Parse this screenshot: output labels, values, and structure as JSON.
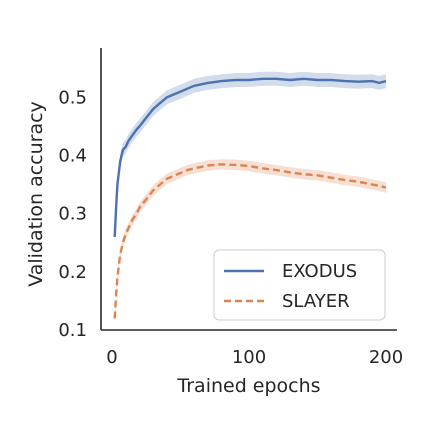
{
  "chart_data": {
    "type": "line",
    "title": "",
    "xlabel": "Trained epochs",
    "ylabel": "Validation accuracy",
    "xlim": [
      -8,
      208
    ],
    "ylim": [
      0.1,
      0.585
    ],
    "xticks": [
      0,
      100,
      200
    ],
    "xtick_labels": [
      "0",
      "100",
      "200"
    ],
    "yticks": [
      0.1,
      0.2,
      0.3,
      0.4,
      0.5
    ],
    "ytick_labels": [
      "0.1",
      "0.2",
      "0.3",
      "0.4",
      "0.5"
    ],
    "grid": false,
    "legend_position": "lower-right",
    "series": [
      {
        "name": "EXODUS",
        "color": "#4c72b0",
        "line_style": "solid",
        "shaded_band": true,
        "x": [
          2,
          3,
          4,
          5,
          6,
          8,
          10,
          12,
          15,
          18,
          20,
          25,
          30,
          35,
          40,
          45,
          50,
          55,
          60,
          70,
          80,
          90,
          100,
          110,
          120,
          130,
          140,
          150,
          160,
          170,
          180,
          190,
          195,
          200
        ],
        "y": [
          0.26,
          0.31,
          0.35,
          0.37,
          0.39,
          0.41,
          0.415,
          0.425,
          0.435,
          0.445,
          0.45,
          0.465,
          0.48,
          0.49,
          0.5,
          0.505,
          0.51,
          0.515,
          0.52,
          0.525,
          0.528,
          0.53,
          0.53,
          0.532,
          0.532,
          0.53,
          0.532,
          0.53,
          0.53,
          0.528,
          0.527,
          0.528,
          0.525,
          0.528
        ]
      },
      {
        "name": "SLAYER",
        "color": "#dd8452",
        "line_style": "dashed",
        "shaded_band": true,
        "x": [
          2,
          3,
          4,
          5,
          6,
          8,
          10,
          12,
          15,
          18,
          20,
          25,
          30,
          35,
          40,
          45,
          50,
          55,
          60,
          70,
          80,
          90,
          100,
          110,
          120,
          130,
          140,
          150,
          160,
          170,
          180,
          190,
          195,
          200
        ],
        "y": [
          0.12,
          0.16,
          0.19,
          0.21,
          0.23,
          0.25,
          0.265,
          0.275,
          0.29,
          0.3,
          0.31,
          0.325,
          0.34,
          0.35,
          0.36,
          0.365,
          0.37,
          0.375,
          0.378,
          0.383,
          0.385,
          0.384,
          0.382,
          0.378,
          0.375,
          0.371,
          0.368,
          0.366,
          0.362,
          0.358,
          0.355,
          0.35,
          0.348,
          0.345
        ]
      }
    ]
  }
}
